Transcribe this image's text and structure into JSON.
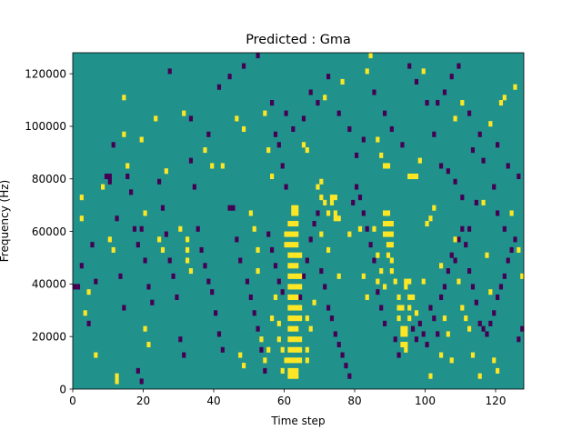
{
  "chart_data": {
    "type": "heatmap",
    "title": "Predicted : Gma",
    "xlabel": "Time step",
    "ylabel": "Frequency (Hz)",
    "xlim": [
      0,
      128
    ],
    "ylim": [
      0,
      128000
    ],
    "x_ticks": [
      0,
      20,
      40,
      60,
      80,
      100,
      120
    ],
    "x_tick_labels": [
      "0",
      "20",
      "40",
      "60",
      "80",
      "100",
      "120"
    ],
    "y_ticks": [
      0,
      20000,
      40000,
      60000,
      80000,
      100000,
      120000
    ],
    "y_tick_labels": [
      "0",
      "20000",
      "40000",
      "60000",
      "80000",
      "100000",
      "120000"
    ],
    "grid": false,
    "legend": "none",
    "value_levels": [
      -1,
      0,
      1
    ],
    "colors": {
      "background": "#21918c",
      "low": "#440154",
      "high": "#fde725"
    },
    "cell_height_hz": 2000,
    "background_value": 0,
    "high_cells": [
      [
        61,
        4000
      ],
      [
        62,
        4000
      ],
      [
        63,
        4000
      ],
      [
        61,
        6000
      ],
      [
        62,
        6000
      ],
      [
        63,
        6000
      ],
      [
        60,
        10000
      ],
      [
        61,
        10000
      ],
      [
        62,
        10000
      ],
      [
        63,
        10000
      ],
      [
        64,
        10000
      ],
      [
        61,
        14000
      ],
      [
        62,
        14000
      ],
      [
        63,
        14000
      ],
      [
        64,
        14000
      ],
      [
        61,
        18000
      ],
      [
        62,
        18000
      ],
      [
        63,
        18000
      ],
      [
        64,
        18000
      ],
      [
        61,
        22000
      ],
      [
        62,
        22000
      ],
      [
        63,
        22000
      ],
      [
        61,
        26000
      ],
      [
        62,
        26000
      ],
      [
        63,
        26000
      ],
      [
        64,
        26000
      ],
      [
        61,
        30000
      ],
      [
        62,
        30000
      ],
      [
        63,
        30000
      ],
      [
        64,
        30000
      ],
      [
        61,
        34000
      ],
      [
        62,
        34000
      ],
      [
        63,
        34000
      ],
      [
        61,
        38000
      ],
      [
        62,
        38000
      ],
      [
        63,
        38000
      ],
      [
        64,
        38000
      ],
      [
        61,
        42000
      ],
      [
        62,
        42000
      ],
      [
        63,
        42000
      ],
      [
        64,
        42000
      ],
      [
        61,
        46000
      ],
      [
        62,
        46000
      ],
      [
        63,
        46000
      ],
      [
        61,
        50000
      ],
      [
        62,
        50000
      ],
      [
        63,
        50000
      ],
      [
        64,
        50000
      ],
      [
        60,
        54000
      ],
      [
        61,
        54000
      ],
      [
        62,
        54000
      ],
      [
        63,
        54000
      ],
      [
        60,
        58000
      ],
      [
        61,
        58000
      ],
      [
        62,
        58000
      ],
      [
        63,
        58000
      ],
      [
        61,
        62000
      ],
      [
        62,
        62000
      ],
      [
        63,
        62000
      ],
      [
        62,
        66000
      ],
      [
        63,
        66000
      ],
      [
        62,
        68000
      ],
      [
        63,
        68000
      ],
      [
        73,
        72000
      ],
      [
        74,
        72000
      ],
      [
        73,
        70000
      ],
      [
        74,
        66000
      ],
      [
        74,
        64000
      ],
      [
        75,
        64000
      ],
      [
        88,
        66000
      ],
      [
        89,
        66000
      ],
      [
        88,
        62000
      ],
      [
        89,
        62000
      ],
      [
        90,
        62000
      ],
      [
        88,
        58000
      ],
      [
        89,
        58000
      ],
      [
        90,
        58000
      ],
      [
        89,
        54000
      ],
      [
        90,
        54000
      ],
      [
        89,
        50000
      ],
      [
        90,
        48000
      ],
      [
        94,
        40000
      ],
      [
        95,
        40000
      ],
      [
        94,
        38000
      ],
      [
        92,
        34000
      ],
      [
        95,
        34000
      ],
      [
        92,
        30000
      ],
      [
        93,
        30000
      ],
      [
        95,
        30000
      ],
      [
        92,
        26000
      ],
      [
        95,
        26000
      ],
      [
        93,
        22000
      ],
      [
        94,
        22000
      ],
      [
        93,
        20000
      ],
      [
        94,
        20000
      ],
      [
        93,
        16000
      ],
      [
        94,
        16000
      ],
      [
        94,
        14000
      ],
      [
        87,
        88000
      ],
      [
        88,
        84000
      ],
      [
        89,
        84000
      ],
      [
        95,
        80000
      ],
      [
        96,
        80000
      ],
      [
        97,
        80000
      ],
      [
        32,
        56000
      ],
      [
        32,
        52000
      ],
      [
        32,
        48000
      ],
      [
        33,
        44000
      ],
      [
        30,
        60000
      ],
      [
        2,
        72000
      ],
      [
        2,
        64000
      ],
      [
        3,
        28000
      ],
      [
        4,
        36000
      ],
      [
        6,
        12000
      ],
      [
        8,
        76000
      ],
      [
        10,
        56000
      ],
      [
        11,
        52000
      ],
      [
        12,
        4000
      ],
      [
        12,
        2000
      ],
      [
        14,
        110000
      ],
      [
        14,
        96000
      ],
      [
        15,
        84000
      ],
      [
        19,
        94000
      ],
      [
        20,
        66000
      ],
      [
        20,
        22000
      ],
      [
        21,
        16000
      ],
      [
        23,
        102000
      ],
      [
        24,
        56000
      ],
      [
        25,
        52000
      ],
      [
        26,
        82000
      ],
      [
        31,
        104000
      ],
      [
        37,
        90000
      ],
      [
        39,
        84000
      ],
      [
        42,
        84000
      ],
      [
        46,
        102000
      ],
      [
        48,
        98000
      ],
      [
        50,
        66000
      ],
      [
        51,
        60000
      ],
      [
        47,
        12000
      ],
      [
        48,
        8000
      ],
      [
        52,
        52000
      ],
      [
        52,
        44000
      ],
      [
        54,
        104000
      ],
      [
        55,
        90000
      ],
      [
        56,
        80000
      ],
      [
        57,
        34000
      ],
      [
        58,
        24000
      ],
      [
        58,
        18000
      ],
      [
        59,
        14000
      ],
      [
        59,
        6000
      ],
      [
        55,
        14000
      ],
      [
        54,
        10000
      ],
      [
        53,
        18000
      ],
      [
        56,
        26000
      ],
      [
        66,
        10000
      ],
      [
        66,
        14000
      ],
      [
        66,
        26000
      ],
      [
        67,
        22000
      ],
      [
        68,
        32000
      ],
      [
        69,
        76000
      ],
      [
        70,
        72000
      ],
      [
        71,
        70000
      ],
      [
        72,
        66000
      ],
      [
        70,
        58000
      ],
      [
        72,
        52000
      ],
      [
        75,
        42000
      ],
      [
        78,
        58000
      ],
      [
        81,
        60000
      ],
      [
        82,
        42000
      ],
      [
        83,
        34000
      ],
      [
        85,
        60000
      ],
      [
        86,
        50000
      ],
      [
        86,
        40000
      ],
      [
        87,
        44000
      ],
      [
        88,
        38000
      ],
      [
        90,
        44000
      ],
      [
        91,
        40000
      ],
      [
        96,
        34000
      ],
      [
        97,
        28000
      ],
      [
        99,
        40000
      ],
      [
        100,
        62000
      ],
      [
        101,
        64000
      ],
      [
        102,
        68000
      ],
      [
        104,
        46000
      ],
      [
        105,
        26000
      ],
      [
        106,
        20000
      ],
      [
        107,
        10000
      ],
      [
        108,
        56000
      ],
      [
        109,
        40000
      ],
      [
        110,
        30000
      ],
      [
        111,
        26000
      ],
      [
        112,
        22000
      ],
      [
        113,
        12000
      ],
      [
        115,
        4000
      ],
      [
        116,
        70000
      ],
      [
        117,
        50000
      ],
      [
        118,
        36000
      ],
      [
        119,
        10000
      ],
      [
        121,
        108000
      ],
      [
        124,
        66000
      ],
      [
        126,
        52000
      ],
      [
        127,
        42000
      ],
      [
        83,
        120000
      ],
      [
        84,
        126000
      ],
      [
        86,
        94000
      ],
      [
        98,
        86000
      ],
      [
        99,
        120000
      ],
      [
        108,
        102000
      ],
      [
        110,
        108000
      ],
      [
        118,
        100000
      ],
      [
        122,
        110000
      ],
      [
        125,
        114000
      ],
      [
        120,
        6000
      ],
      [
        101,
        4000
      ],
      [
        104,
        12000
      ],
      [
        71,
        110000
      ],
      [
        76,
        116000
      ],
      [
        70,
        78000
      ],
      [
        66,
        90000
      ],
      [
        65,
        92000
      ]
    ],
    "low_cells": [
      [
        0,
        38000
      ],
      [
        1,
        38000
      ],
      [
        2,
        46000
      ],
      [
        4,
        24000
      ],
      [
        5,
        54000
      ],
      [
        6,
        40000
      ],
      [
        9,
        80000
      ],
      [
        10,
        80000
      ],
      [
        10,
        78000
      ],
      [
        11,
        92000
      ],
      [
        12,
        64000
      ],
      [
        13,
        42000
      ],
      [
        14,
        30000
      ],
      [
        15,
        80000
      ],
      [
        16,
        74000
      ],
      [
        17,
        60000
      ],
      [
        18,
        54000
      ],
      [
        19,
        60000
      ],
      [
        18,
        6000
      ],
      [
        19,
        2000
      ],
      [
        20,
        48000
      ],
      [
        21,
        38000
      ],
      [
        22,
        32000
      ],
      [
        24,
        78000
      ],
      [
        25,
        68000
      ],
      [
        26,
        58000
      ],
      [
        27,
        48000
      ],
      [
        28,
        42000
      ],
      [
        29,
        34000
      ],
      [
        30,
        18000
      ],
      [
        31,
        12000
      ],
      [
        33,
        86000
      ],
      [
        34,
        76000
      ],
      [
        35,
        60000
      ],
      [
        36,
        52000
      ],
      [
        37,
        46000
      ],
      [
        38,
        40000
      ],
      [
        39,
        36000
      ],
      [
        40,
        28000
      ],
      [
        41,
        20000
      ],
      [
        42,
        14000
      ],
      [
        44,
        68000
      ],
      [
        45,
        68000
      ],
      [
        46,
        56000
      ],
      [
        47,
        48000
      ],
      [
        49,
        40000
      ],
      [
        50,
        34000
      ],
      [
        51,
        28000
      ],
      [
        52,
        22000
      ],
      [
        53,
        14000
      ],
      [
        54,
        6000
      ],
      [
        55,
        58000
      ],
      [
        56,
        52000
      ],
      [
        57,
        46000
      ],
      [
        58,
        40000
      ],
      [
        59,
        36000
      ],
      [
        56,
        108000
      ],
      [
        57,
        96000
      ],
      [
        58,
        92000
      ],
      [
        59,
        84000
      ],
      [
        60,
        76000
      ],
      [
        64,
        34000
      ],
      [
        65,
        42000
      ],
      [
        66,
        48000
      ],
      [
        67,
        56000
      ],
      [
        68,
        62000
      ],
      [
        69,
        66000
      ],
      [
        70,
        44000
      ],
      [
        71,
        38000
      ],
      [
        72,
        30000
      ],
      [
        73,
        26000
      ],
      [
        74,
        20000
      ],
      [
        75,
        16000
      ],
      [
        76,
        12000
      ],
      [
        77,
        8000
      ],
      [
        78,
        4000
      ],
      [
        79,
        70000
      ],
      [
        80,
        76000
      ],
      [
        81,
        72000
      ],
      [
        82,
        66000
      ],
      [
        83,
        60000
      ],
      [
        84,
        54000
      ],
      [
        85,
        48000
      ],
      [
        86,
        36000
      ],
      [
        87,
        30000
      ],
      [
        88,
        24000
      ],
      [
        91,
        18000
      ],
      [
        92,
        12000
      ],
      [
        96,
        22000
      ],
      [
        97,
        18000
      ],
      [
        98,
        24000
      ],
      [
        99,
        20000
      ],
      [
        100,
        16000
      ],
      [
        101,
        30000
      ],
      [
        102,
        26000
      ],
      [
        103,
        20000
      ],
      [
        104,
        34000
      ],
      [
        105,
        38000
      ],
      [
        106,
        44000
      ],
      [
        107,
        50000
      ],
      [
        108,
        48000
      ],
      [
        109,
        56000
      ],
      [
        110,
        60000
      ],
      [
        111,
        54000
      ],
      [
        112,
        44000
      ],
      [
        113,
        38000
      ],
      [
        114,
        32000
      ],
      [
        115,
        24000
      ],
      [
        116,
        22000
      ],
      [
        117,
        20000
      ],
      [
        118,
        24000
      ],
      [
        119,
        28000
      ],
      [
        120,
        34000
      ],
      [
        121,
        38000
      ],
      [
        122,
        42000
      ],
      [
        123,
        48000
      ],
      [
        124,
        52000
      ],
      [
        125,
        56000
      ],
      [
        126,
        18000
      ],
      [
        127,
        22000
      ],
      [
        112,
        60000
      ],
      [
        114,
        70000
      ],
      [
        119,
        76000
      ],
      [
        120,
        66000
      ],
      [
        122,
        60000
      ],
      [
        110,
        72000
      ],
      [
        104,
        84000
      ],
      [
        106,
        82000
      ],
      [
        108,
        78000
      ],
      [
        113,
        90000
      ],
      [
        115,
        96000
      ],
      [
        103,
        108000
      ],
      [
        105,
        112000
      ],
      [
        107,
        118000
      ],
      [
        109,
        122000
      ],
      [
        112,
        104000
      ],
      [
        116,
        86000
      ],
      [
        120,
        92000
      ],
      [
        123,
        84000
      ],
      [
        126,
        80000
      ],
      [
        27,
        120000
      ],
      [
        33,
        102000
      ],
      [
        38,
        96000
      ],
      [
        41,
        114000
      ],
      [
        44,
        118000
      ],
      [
        48,
        122000
      ],
      [
        52,
        126000
      ],
      [
        60,
        104000
      ],
      [
        62,
        98000
      ],
      [
        65,
        102000
      ],
      [
        67,
        112000
      ],
      [
        69,
        108000
      ],
      [
        72,
        118000
      ],
      [
        75,
        104000
      ],
      [
        78,
        98000
      ],
      [
        80,
        88000
      ],
      [
        82,
        94000
      ],
      [
        85,
        112000
      ],
      [
        88,
        104000
      ],
      [
        90,
        98000
      ],
      [
        93,
        92000
      ],
      [
        95,
        122000
      ],
      [
        97,
        116000
      ],
      [
        100,
        108000
      ],
      [
        102,
        96000
      ]
    ]
  }
}
